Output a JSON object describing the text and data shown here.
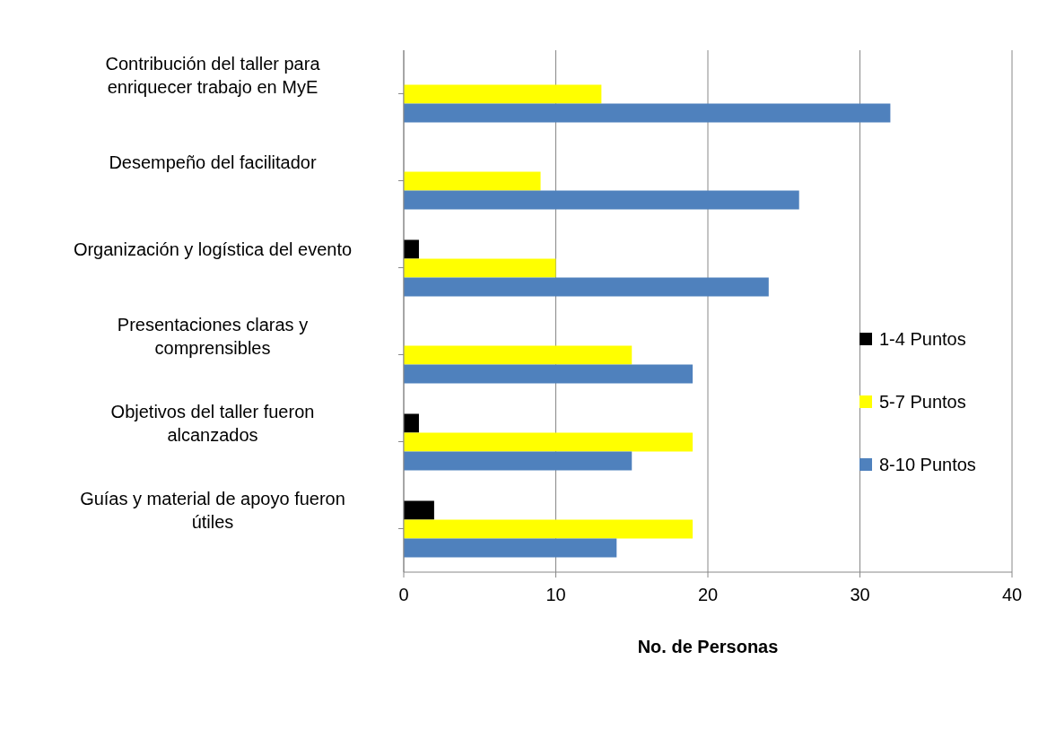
{
  "chart_data": {
    "type": "bar",
    "orientation": "horizontal",
    "xlabel": "No. de Personas",
    "categories": [
      "Contribución del taller para enriquecer trabajo en MyE",
      "Desempeño del facilitador",
      "Organización y logística del evento",
      "Presentaciones claras y comprensibles",
      "Objetivos del taller fueron alcanzados",
      "Guías y material de apoyo fueron útiles"
    ],
    "series": [
      {
        "name": "1-4 Puntos",
        "color": "#000000",
        "values": [
          0,
          0,
          1,
          0,
          1,
          2
        ]
      },
      {
        "name": "5-7 Puntos",
        "color": "#ffff00",
        "values": [
          13,
          9,
          10,
          15,
          19,
          19
        ]
      },
      {
        "name": "8-10 Puntos",
        "color": "#4f81bd",
        "values": [
          32,
          26,
          24,
          19,
          15,
          14
        ]
      }
    ],
    "xlim": [
      0,
      40
    ],
    "xticks": [
      0,
      10,
      20,
      30,
      40
    ],
    "grid": "x",
    "legend": "right"
  }
}
